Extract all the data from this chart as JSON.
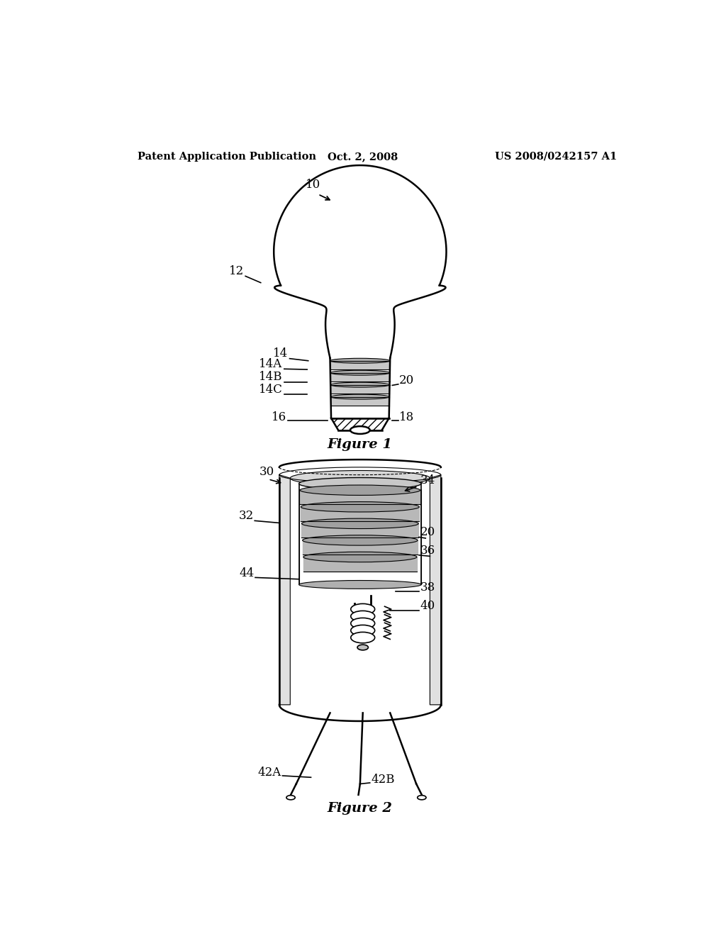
{
  "header_left": "Patent Application Publication",
  "header_center": "Oct. 2, 2008",
  "header_right": "US 2008/0242157 A1",
  "fig1_caption": "Figure 1",
  "fig2_caption": "Figure 2",
  "background_color": "#ffffff",
  "line_color": "#000000",
  "thread_fill": "#c8c8c8",
  "thread_dark": "#909090",
  "wall_fill": "#e8e8e8",
  "socket_wall_fill": "#d8d8d8",
  "hatch_fill": "#d0d0d0"
}
